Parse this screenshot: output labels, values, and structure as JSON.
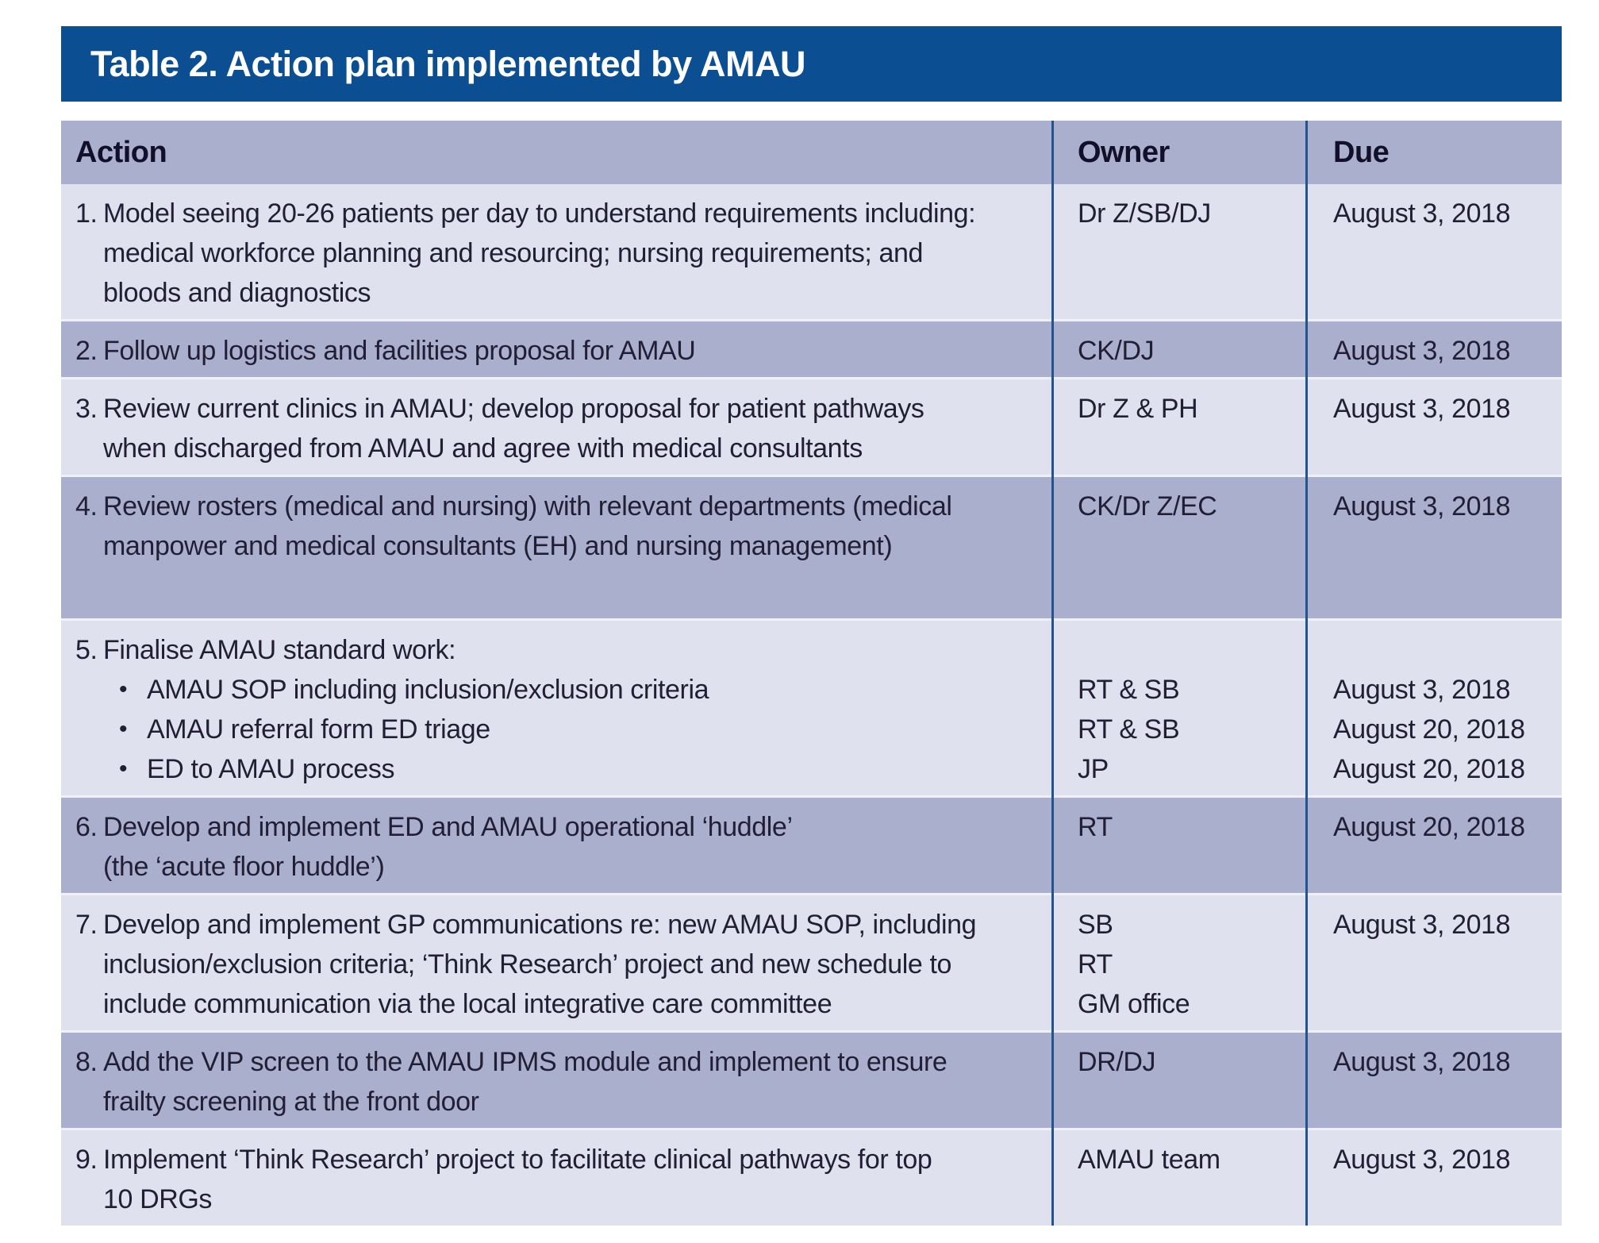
{
  "title": "Table 2. Action plan implemented by AMAU",
  "colors": {
    "title_bar_blue": "#0b4f92",
    "header_row_lavender": "#aaafce",
    "dark_row_lavender": "#aaafce",
    "light_row_lavender": "#dfe1ee",
    "column_divider_blue": "#24548f",
    "row_separator": "#f0f1f8",
    "title_text": "#ffffff",
    "body_text": "#221f35"
  },
  "table": {
    "headers": [
      "Action",
      "Owner",
      "Due"
    ],
    "rows": [
      {
        "num": "1.",
        "shade": "light",
        "action_lines": [
          "Model seeing 20-26 patients per day to understand requirements including:",
          "medical workforce planning and resourcing; nursing requirements; and",
          "bloods and diagnostics"
        ],
        "bullets": [],
        "owner_lines": [
          "Dr Z/SB/DJ"
        ],
        "due_lines": [
          "August 3, 2018"
        ]
      },
      {
        "num": "2.",
        "shade": "dark",
        "action_lines": [
          "Follow up logistics and facilities proposal for AMAU"
        ],
        "bullets": [],
        "owner_lines": [
          "CK/DJ"
        ],
        "due_lines": [
          "August 3, 2018"
        ]
      },
      {
        "num": "3.",
        "shade": "light",
        "action_lines": [
          "Review current clinics in AMAU; develop proposal for patient pathways",
          "when discharged from AMAU and agree with medical consultants"
        ],
        "bullets": [],
        "owner_lines": [
          "Dr Z & PH"
        ],
        "due_lines": [
          "August 3, 2018"
        ]
      },
      {
        "num": "4.",
        "shade": "dark",
        "min_height": 178,
        "action_lines": [
          "Review rosters (medical and nursing) with relevant departments (medical",
          "manpower and medical consultants (EH) and nursing management)"
        ],
        "bullets": [],
        "owner_lines": [
          "CK/Dr Z/EC"
        ],
        "due_lines": [
          "August 3, 2018"
        ]
      },
      {
        "num": "5.",
        "shade": "light",
        "action_lines": [
          "Finalise AMAU standard work:"
        ],
        "bullets": [
          "AMAU SOP including inclusion/exclusion criteria",
          "AMAU referral form ED triage",
          "ED to AMAU process"
        ],
        "side_offset_lines": 1,
        "owner_lines": [
          "RT & SB",
          "RT & SB",
          "JP"
        ],
        "due_lines": [
          "August 3, 2018",
          "August 20, 2018",
          "August 20, 2018"
        ]
      },
      {
        "num": "6.",
        "shade": "dark",
        "action_lines": [
          "Develop and implement ED and AMAU operational ‘huddle’",
          "(the ‘acute floor huddle’)"
        ],
        "bullets": [],
        "owner_lines": [
          "RT"
        ],
        "due_lines": [
          "August 20, 2018"
        ]
      },
      {
        "num": "7.",
        "shade": "light",
        "action_lines": [
          "Develop and implement GP communications re: new AMAU SOP, including",
          "inclusion/exclusion criteria; ‘Think Research’ project and new schedule to",
          "include communication via the local integrative care committee"
        ],
        "bullets": [],
        "owner_lines": [
          "SB",
          "RT",
          "GM office"
        ],
        "due_lines": [
          "August 3, 2018"
        ]
      },
      {
        "num": "8.",
        "shade": "dark",
        "action_lines": [
          "Add the VIP screen to the AMAU IPMS module and implement to ensure",
          "frailty screening at the front door"
        ],
        "bullets": [],
        "owner_lines": [
          "DR/DJ"
        ],
        "due_lines": [
          "August 3, 2018"
        ]
      },
      {
        "num": "9.",
        "shade": "light",
        "action_lines": [
          "Implement ‘Think Research’ project to facilitate clinical pathways for top",
          "10 DRGs"
        ],
        "bullets": [],
        "owner_lines": [
          "AMAU team"
        ],
        "due_lines": [
          "August 3, 2018"
        ]
      }
    ]
  }
}
